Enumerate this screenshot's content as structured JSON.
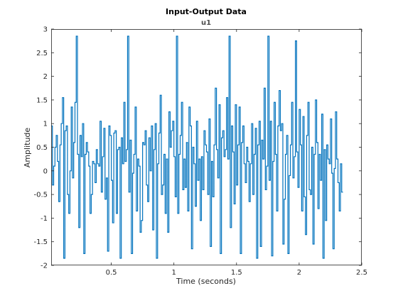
{
  "chart_data": {
    "type": "line",
    "step": true,
    "title": "Input-Output Data",
    "subtitle": "u1",
    "xlabel": "Time (seconds)",
    "ylabel": "Amplitude",
    "xlim": [
      0.02,
      2.5
    ],
    "ylim": [
      -2,
      3
    ],
    "xticks": [
      0.5,
      1,
      1.5,
      2,
      2.5
    ],
    "xtick_labels": [
      "0.5",
      "1",
      "1.5",
      "2",
      "2.5"
    ],
    "yticks": [
      -2,
      -1.5,
      -1,
      -0.5,
      0,
      0.5,
      1,
      1.5,
      2,
      2.5,
      3
    ],
    "ytick_labels": [
      "-2",
      "-1.5",
      "-1",
      "-0.5",
      "0",
      "0.5",
      "1",
      "1.5",
      "2",
      "2.5",
      "3"
    ],
    "grid": false,
    "series": [
      {
        "color": "#0072bd",
        "sample_time": 0.01,
        "x_start": 0.02,
        "values": [
          0.95,
          -0.3,
          0.1,
          0.5,
          0.75,
          0.2,
          -0.65,
          0.55,
          1.0,
          1.55,
          -1.85,
          0.85,
          0.95,
          -0.5,
          -0.9,
          0.0,
          1.35,
          -0.15,
          0.6,
          1.45,
          2.85,
          0.35,
          -1.2,
          0.75,
          0.3,
          1.0,
          -1.75,
          0.35,
          0.6,
          0.4,
          0.1,
          -0.9,
          -0.5,
          0.2,
          0.15,
          -0.25,
          0.45,
          0.15,
          0.1,
          1.05,
          -0.45,
          0.3,
          0.9,
          -0.6,
          -0.15,
          -1.7,
          0.95,
          0.75,
          -0.2,
          -1.1,
          0.8,
          0.85,
          -0.9,
          0.45,
          0.5,
          -1.85,
          0.7,
          0.15,
          1.45,
          0.2,
          0.45,
          2.85,
          -0.45,
          0.65,
          -1.75,
          -0.05,
          0.35,
          1.35,
          -0.85,
          0.25,
          0.1,
          -1.3,
          -1.05,
          0.6,
          0.55,
          0.85,
          -0.3,
          -0.65,
          0.7,
          0.0,
          0.95,
          -1.25,
          0.45,
          1.0,
          -1.85,
          0.15,
          0.8,
          1.6,
          -0.5,
          -0.3,
          0.35,
          -0.9,
          0.25,
          -1.3,
          1.25,
          0.5,
          0.85,
          1.05,
          0.3,
          -0.55,
          2.85,
          -0.9,
          0.35,
          0.75,
          1.45,
          -0.4,
          0.25,
          -0.35,
          0.6,
          -0.85,
          1.35,
          0.95,
          -1.65,
          0.5,
          0.15,
          -0.75,
          1.05,
          -0.2,
          0.25,
          -1.05,
          0.3,
          -0.4,
          0.85,
          0.55,
          0.4,
          -0.5,
          1.1,
          -1.6,
          0.2,
          -0.55,
          0.55,
          1.75,
          0.45,
          -0.15,
          1.4,
          -1.75,
          0.7,
          0.85,
          0.3,
          0.45,
          1.55,
          0.25,
          2.85,
          -1.2,
          0.95,
          0.4,
          -0.7,
          1.4,
          -0.3,
          0.55,
          1.35,
          -1.75,
          0.6,
          0.95,
          0.15,
          -0.25,
          0.5,
          0.2,
          -0.65,
          0.15,
          1.0,
          -0.5,
          0.35,
          0.9,
          -1.85,
          0.55,
          1.05,
          -1.6,
          0.65,
          0.25,
          1.75,
          -0.4,
          0.1,
          2.85,
          -0.2,
          1.05,
          -1.8,
          0.2,
          1.45,
          0.35,
          -0.85,
          0.95,
          1.7,
          0.85,
          1.0,
          -1.55,
          -0.6,
          0.35,
          0.75,
          -1.75,
          -0.1,
          0.55,
          1.45,
          -0.15,
          0.3,
          2.75,
          0.4,
          -0.35,
          1.3,
          0.55,
          -0.85,
          1.15,
          -0.55,
          -1.35,
          0.75,
          1.45,
          -0.4,
          -0.5,
          0.5,
          -1.55,
          0.35,
          1.5,
          0.6,
          -0.8,
          0.35,
          -0.2,
          1.2,
          -1.85,
          0.45,
          -1.05,
          0.55,
          0.25,
          0.15,
          1.1,
          -0.05,
          -1.65,
          0.05,
          1.25,
          0.25,
          -0.25,
          -0.85,
          0.15,
          -0.45
        ]
      }
    ]
  }
}
